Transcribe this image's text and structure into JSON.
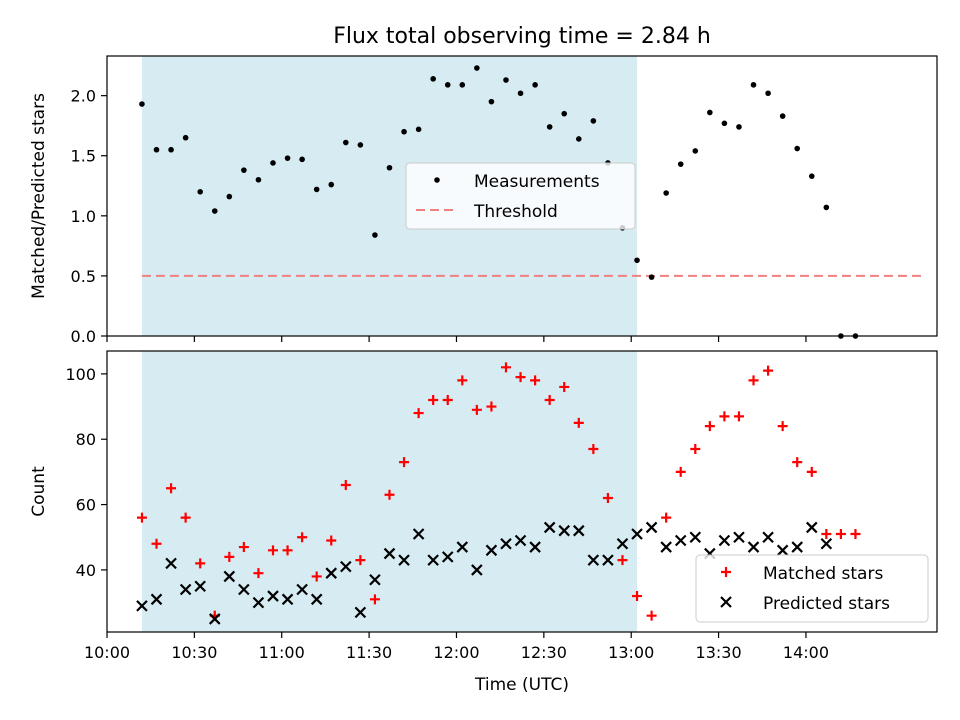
{
  "title": "Flux total observing time = 2.84 h",
  "colors": {
    "shade": "#add8e6",
    "measurement": "#000000",
    "threshold": "#f08080",
    "matched": "#ff0000",
    "predicted": "#000000"
  },
  "chart_data": [
    {
      "type": "scatter",
      "ylabel": "Matched/Predicted stars",
      "ylim": [
        0,
        2.33
      ],
      "xlim": [
        "10:00",
        "14:45"
      ],
      "yticks": [
        "0.0",
        "0.5",
        "1.0",
        "1.5",
        "2.0"
      ],
      "shaded_region": [
        "10:12",
        "13:02"
      ],
      "legend_position": "center",
      "threshold": {
        "name": "Threshold",
        "value": 0.5,
        "x": [
          "10:12",
          "14:40"
        ]
      },
      "series": [
        {
          "name": "Measurements",
          "points": [
            [
              "10:12",
              1.93
            ],
            [
              "10:17",
              1.55
            ],
            [
              "10:22",
              1.55
            ],
            [
              "10:27",
              1.65
            ],
            [
              "10:32",
              1.2
            ],
            [
              "10:37",
              1.04
            ],
            [
              "10:42",
              1.16
            ],
            [
              "10:47",
              1.38
            ],
            [
              "10:52",
              1.3
            ],
            [
              "10:57",
              1.44
            ],
            [
              "11:02",
              1.48
            ],
            [
              "11:07",
              1.47
            ],
            [
              "11:12",
              1.22
            ],
            [
              "11:17",
              1.26
            ],
            [
              "11:22",
              1.61
            ],
            [
              "11:27",
              1.59
            ],
            [
              "11:32",
              0.84
            ],
            [
              "11:37",
              1.4
            ],
            [
              "11:42",
              1.7
            ],
            [
              "11:47",
              1.72
            ],
            [
              "11:52",
              2.14
            ],
            [
              "11:57",
              2.09
            ],
            [
              "12:02",
              2.09
            ],
            [
              "12:07",
              2.23
            ],
            [
              "12:12",
              1.95
            ],
            [
              "12:17",
              2.13
            ],
            [
              "12:22",
              2.02
            ],
            [
              "12:27",
              2.09
            ],
            [
              "12:32",
              1.74
            ],
            [
              "12:37",
              1.85
            ],
            [
              "12:42",
              1.64
            ],
            [
              "12:47",
              1.79
            ],
            [
              "12:52",
              1.44
            ],
            [
              "12:57",
              0.9
            ],
            [
              "13:02",
              0.63
            ],
            [
              "13:07",
              0.49
            ],
            [
              "13:12",
              1.19
            ],
            [
              "13:17",
              1.43
            ],
            [
              "13:22",
              1.54
            ],
            [
              "13:27",
              1.86
            ],
            [
              "13:32",
              1.77
            ],
            [
              "13:37",
              1.74
            ],
            [
              "13:42",
              2.09
            ],
            [
              "13:47",
              2.02
            ],
            [
              "13:52",
              1.83
            ],
            [
              "13:57",
              1.56
            ],
            [
              "14:02",
              1.33
            ],
            [
              "14:07",
              1.07
            ],
            [
              "14:12",
              0.0
            ],
            [
              "14:17",
              0.0
            ]
          ]
        }
      ]
    },
    {
      "type": "scatter",
      "ylabel": "Count",
      "xlabel": "Time (UTC)",
      "ylim": [
        21,
        107
      ],
      "xlim": [
        "10:00",
        "14:45"
      ],
      "yticks": [
        "40",
        "60",
        "80",
        "100"
      ],
      "xticks": [
        "10:00",
        "10:30",
        "11:00",
        "11:30",
        "12:00",
        "12:30",
        "13:00",
        "13:30",
        "14:00"
      ],
      "shaded_region": [
        "10:12",
        "13:02"
      ],
      "legend_position": "lower right",
      "series": [
        {
          "name": "Matched stars",
          "marker": "+",
          "points": [
            [
              "10:12",
              56
            ],
            [
              "10:17",
              48
            ],
            [
              "10:22",
              65
            ],
            [
              "10:27",
              56
            ],
            [
              "10:32",
              42
            ],
            [
              "10:37",
              26
            ],
            [
              "10:42",
              44
            ],
            [
              "10:47",
              47
            ],
            [
              "10:52",
              39
            ],
            [
              "10:57",
              46
            ],
            [
              "11:02",
              46
            ],
            [
              "11:07",
              50
            ],
            [
              "11:12",
              38
            ],
            [
              "11:17",
              49
            ],
            [
              "11:22",
              66
            ],
            [
              "11:27",
              43
            ],
            [
              "11:32",
              31
            ],
            [
              "11:37",
              63
            ],
            [
              "11:42",
              73
            ],
            [
              "11:47",
              88
            ],
            [
              "11:52",
              92
            ],
            [
              "11:57",
              92
            ],
            [
              "12:02",
              98
            ],
            [
              "12:07",
              89
            ],
            [
              "12:12",
              90
            ],
            [
              "12:17",
              102
            ],
            [
              "12:22",
              99
            ],
            [
              "12:27",
              98
            ],
            [
              "12:32",
              92
            ],
            [
              "12:37",
              96
            ],
            [
              "12:42",
              85
            ],
            [
              "12:47",
              77
            ],
            [
              "12:52",
              62
            ],
            [
              "12:57",
              43
            ],
            [
              "13:02",
              32
            ],
            [
              "13:07",
              26
            ],
            [
              "13:12",
              56
            ],
            [
              "13:17",
              70
            ],
            [
              "13:22",
              77
            ],
            [
              "13:27",
              84
            ],
            [
              "13:32",
              87
            ],
            [
              "13:37",
              87
            ],
            [
              "13:42",
              98
            ],
            [
              "13:47",
              101
            ],
            [
              "13:52",
              84
            ],
            [
              "13:57",
              73
            ],
            [
              "14:02",
              70
            ],
            [
              "14:07",
              51
            ],
            [
              "14:12",
              51
            ],
            [
              "14:17",
              51
            ]
          ]
        },
        {
          "name": "Predicted stars",
          "marker": "x",
          "points": [
            [
              "10:12",
              29
            ],
            [
              "10:17",
              31
            ],
            [
              "10:22",
              42
            ],
            [
              "10:27",
              34
            ],
            [
              "10:32",
              35
            ],
            [
              "10:37",
              25
            ],
            [
              "10:42",
              38
            ],
            [
              "10:47",
              34
            ],
            [
              "10:52",
              30
            ],
            [
              "10:57",
              32
            ],
            [
              "11:02",
              31
            ],
            [
              "11:07",
              34
            ],
            [
              "11:12",
              31
            ],
            [
              "11:17",
              39
            ],
            [
              "11:22",
              41
            ],
            [
              "11:27",
              27
            ],
            [
              "11:32",
              37
            ],
            [
              "11:37",
              45
            ],
            [
              "11:42",
              43
            ],
            [
              "11:47",
              51
            ],
            [
              "11:52",
              43
            ],
            [
              "11:57",
              44
            ],
            [
              "12:02",
              47
            ],
            [
              "12:07",
              40
            ],
            [
              "12:12",
              46
            ],
            [
              "12:17",
              48
            ],
            [
              "12:22",
              49
            ],
            [
              "12:27",
              47
            ],
            [
              "12:32",
              53
            ],
            [
              "12:37",
              52
            ],
            [
              "12:42",
              52
            ],
            [
              "12:47",
              43
            ],
            [
              "12:52",
              43
            ],
            [
              "12:57",
              48
            ],
            [
              "13:02",
              51
            ],
            [
              "13:07",
              53
            ],
            [
              "13:12",
              47
            ],
            [
              "13:17",
              49
            ],
            [
              "13:22",
              50
            ],
            [
              "13:27",
              45
            ],
            [
              "13:32",
              49
            ],
            [
              "13:37",
              50
            ],
            [
              "13:42",
              47
            ],
            [
              "13:47",
              50
            ],
            [
              "13:52",
              46
            ],
            [
              "13:57",
              47
            ],
            [
              "14:02",
              53
            ],
            [
              "14:07",
              48
            ]
          ]
        }
      ]
    }
  ]
}
